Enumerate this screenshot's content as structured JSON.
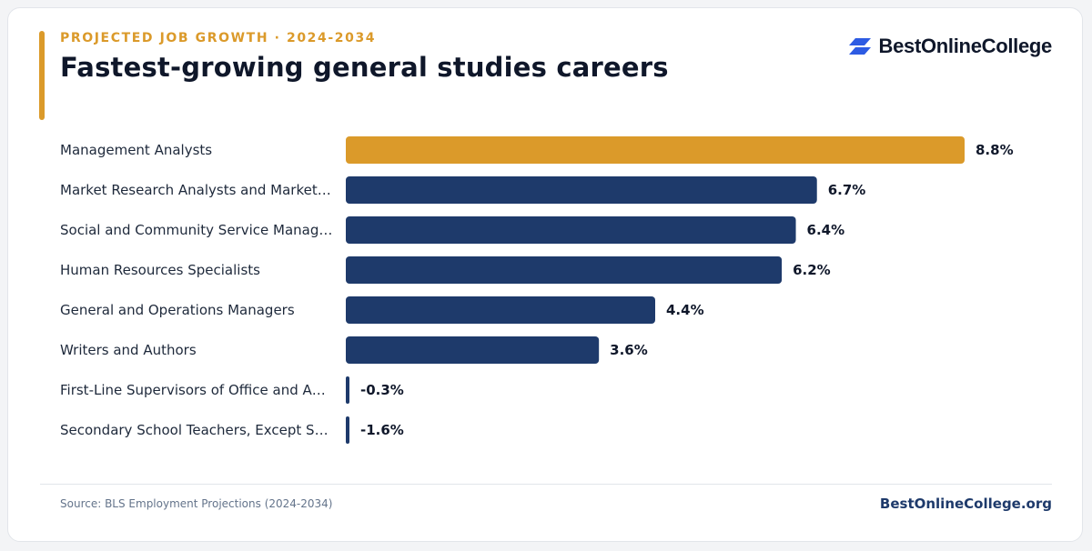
{
  "header": {
    "eyebrow": "PROJECTED JOB GROWTH · 2024-2034",
    "title": "Fastest-growing general studies careers"
  },
  "brand": {
    "name": "BestOnlineCollege",
    "logo_icon": "stacked-parallelogram-logo"
  },
  "colors": {
    "accent": "#db9a2a",
    "bar": "#1e3a6b",
    "highlight": "#db9a2a",
    "logo": "#2d5be3"
  },
  "chart_data": {
    "type": "bar",
    "orientation": "horizontal",
    "categories": [
      "Management Analysts",
      "Market Research Analysts and Market…",
      "Social and Community Service Manag…",
      "Human Resources Specialists",
      "General and Operations Managers",
      "Writers and Authors",
      "First-Line Supervisors of Office and A…",
      "Secondary School Teachers, Except S…"
    ],
    "values": [
      8.8,
      6.7,
      6.4,
      6.2,
      4.4,
      3.6,
      -0.3,
      -1.6
    ],
    "value_labels": [
      "8.8%",
      "6.7%",
      "6.4%",
      "6.2%",
      "4.4%",
      "3.6%",
      "-0.3%",
      "-1.6%"
    ],
    "highlight_index": 0,
    "xlim": [
      0,
      8.8
    ],
    "grid": false,
    "legend": false
  },
  "footer": {
    "source": "Source: BLS Employment Projections (2024-2034)",
    "site": "BestOnlineCollege.org"
  }
}
